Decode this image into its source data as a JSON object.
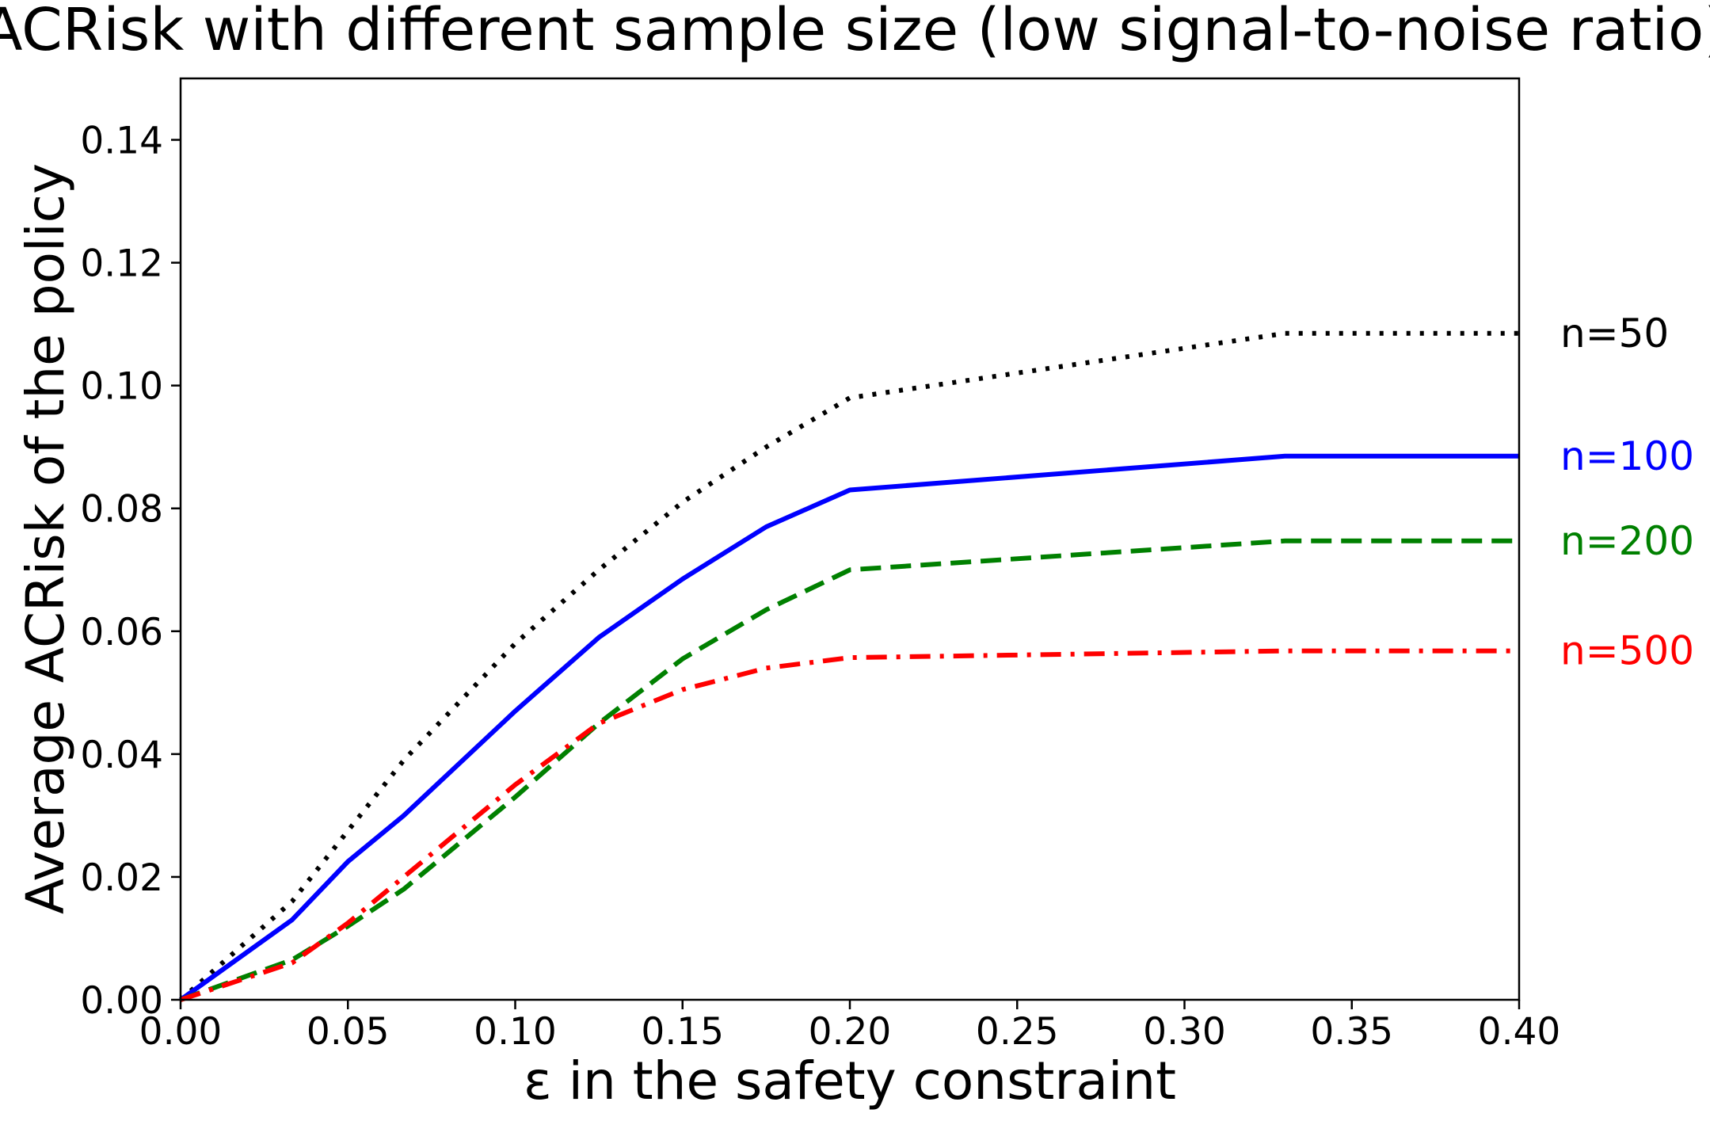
{
  "chart_data": {
    "type": "line",
    "title": "ACRisk with different sample size (low signal-to-noise ratio)",
    "xlabel": "ε in the safety constraint",
    "ylabel": "Average ACRisk of the policy",
    "xlim": [
      0.0,
      0.4
    ],
    "ylim": [
      0.0,
      0.15
    ],
    "xticks": [
      "0.00",
      "0.05",
      "0.10",
      "0.15",
      "0.20",
      "0.25",
      "0.30",
      "0.35",
      "0.40"
    ],
    "yticks": [
      "0.00",
      "0.02",
      "0.04",
      "0.06",
      "0.08",
      "0.10",
      "0.12",
      "0.14"
    ],
    "grid": false,
    "legend_placement": "right of each line end",
    "series": [
      {
        "name": "n=50",
        "color": "#000000",
        "style": "dotted",
        "x": [
          0.0,
          0.0333,
          0.0667,
          0.1,
          0.125,
          0.15,
          0.175,
          0.2,
          0.33,
          0.4
        ],
        "y": [
          0.0,
          0.016,
          0.039,
          0.058,
          0.07,
          0.081,
          0.09,
          0.098,
          0.1085,
          0.1085
        ]
      },
      {
        "name": "n=100",
        "color": "#0000ff",
        "style": "solid",
        "x": [
          0.0,
          0.0333,
          0.05,
          0.0667,
          0.1,
          0.125,
          0.15,
          0.175,
          0.2,
          0.33,
          0.4
        ],
        "y": [
          0.0,
          0.013,
          0.0225,
          0.03,
          0.047,
          0.059,
          0.0685,
          0.077,
          0.083,
          0.0885,
          0.0885
        ]
      },
      {
        "name": "n=200",
        "color": "#008000",
        "style": "dashed",
        "x": [
          0.0,
          0.0333,
          0.05,
          0.0667,
          0.1,
          0.125,
          0.15,
          0.175,
          0.2,
          0.33,
          0.4
        ],
        "y": [
          0.0,
          0.0065,
          0.012,
          0.018,
          0.033,
          0.045,
          0.0555,
          0.0635,
          0.07,
          0.0747,
          0.0747
        ]
      },
      {
        "name": "n=500",
        "color": "#ff0000",
        "style": "dashdot",
        "x": [
          0.0,
          0.0333,
          0.05,
          0.0667,
          0.1,
          0.125,
          0.15,
          0.175,
          0.2,
          0.33,
          0.4
        ],
        "y": [
          0.0,
          0.006,
          0.0125,
          0.02,
          0.035,
          0.045,
          0.0505,
          0.054,
          0.0557,
          0.0568,
          0.0568
        ]
      }
    ]
  }
}
